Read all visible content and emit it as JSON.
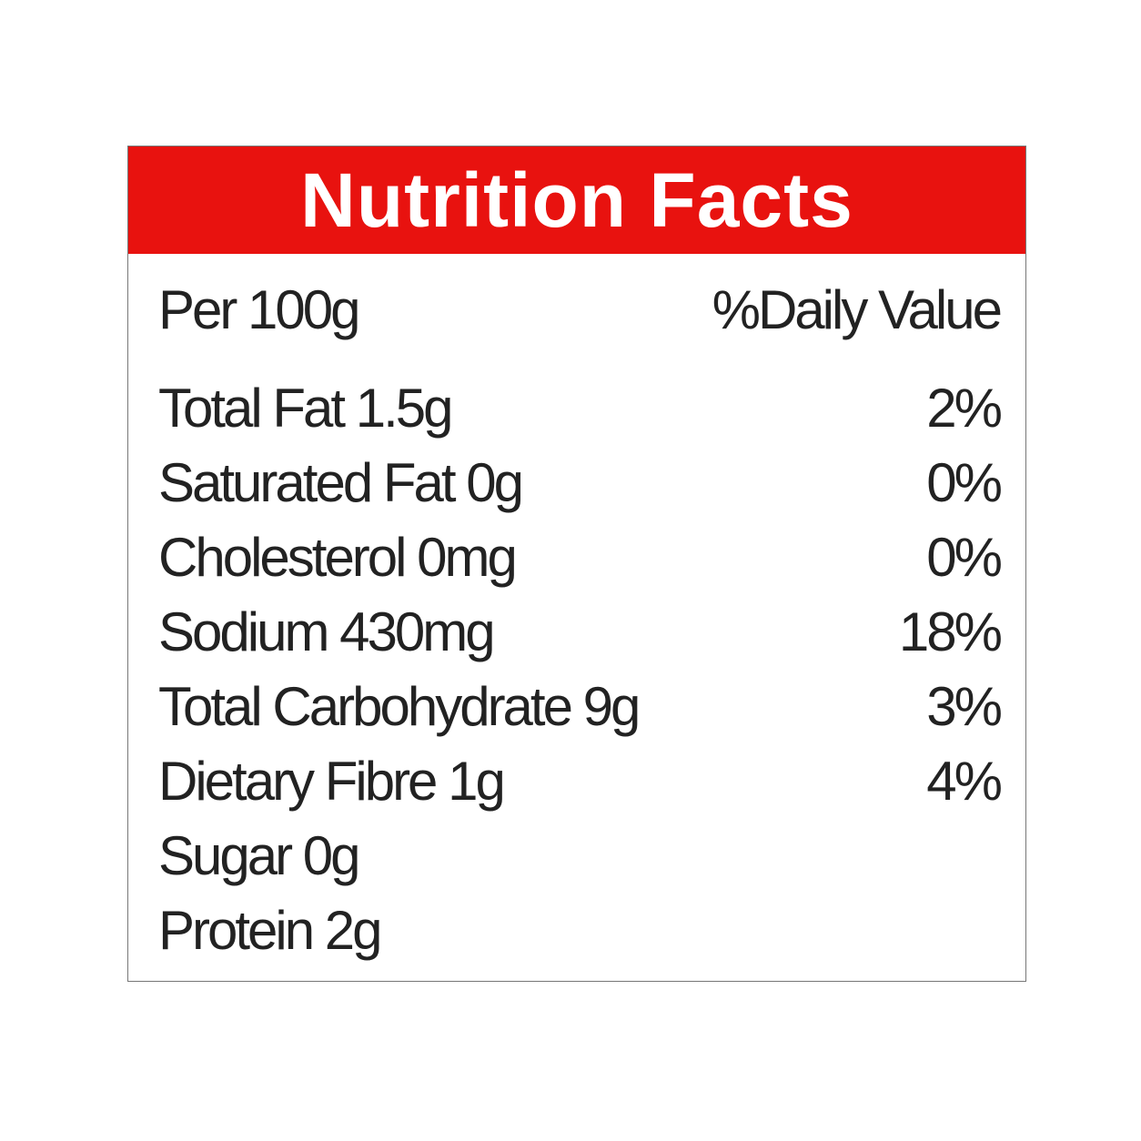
{
  "header": {
    "title": "Nutrition Facts"
  },
  "subheader": {
    "left": "Per 100g",
    "right": "%Daily Value"
  },
  "rows": [
    {
      "label": "Total Fat 1.5g",
      "daily_value": "2%"
    },
    {
      "label": "Saturated Fat 0g",
      "daily_value": "0%"
    },
    {
      "label": "Cholesterol 0mg",
      "daily_value": "0%"
    },
    {
      "label": "Sodium 430mg",
      "daily_value": "18%"
    },
    {
      "label": "Total Carbohydrate 9g",
      "daily_value": "3%"
    },
    {
      "label": "Dietary Fibre 1g",
      "daily_value": "4%"
    },
    {
      "label": "Sugar 0g"
    },
    {
      "label": "Protein 2g"
    }
  ]
}
